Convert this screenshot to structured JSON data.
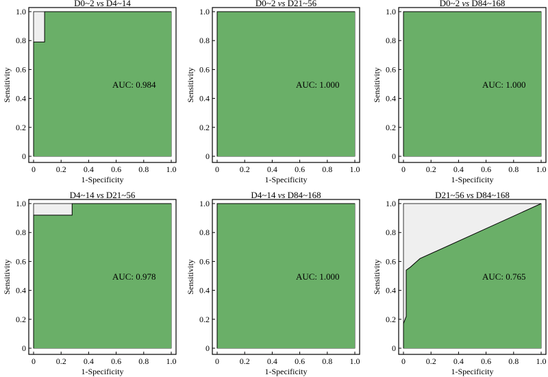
{
  "figure": {
    "xlabel": "1-Specificity",
    "ylabel": "Sensitivity"
  },
  "colors": {
    "auc_fill": "#6aaf68",
    "upper_fill": "#efefef",
    "frame": "#000000"
  },
  "chart_data": [
    {
      "type": "area",
      "title_left": "D0~2",
      "title_vs": "vs",
      "title_right": "D4~14",
      "xlabel": "1-Specificity",
      "ylabel": "Sensitivity",
      "auc_label": "AUC: 0.984",
      "auc": 0.984,
      "xlim": [
        0,
        1
      ],
      "ylim": [
        0,
        1
      ],
      "xticks": [
        "0",
        "0.2",
        "0.4",
        "0.6",
        "0.8",
        "1.0"
      ],
      "yticks": [
        "0",
        "0.2",
        "0.4",
        "0.6",
        "0.8",
        "1.0"
      ],
      "roc": [
        [
          0,
          0
        ],
        [
          0,
          0.79
        ],
        [
          0.08,
          0.79
        ],
        [
          0.08,
          1.0
        ],
        [
          1,
          1.0
        ]
      ]
    },
    {
      "type": "area",
      "title_left": "D0~2",
      "title_vs": "vs",
      "title_right": "D21~56",
      "xlabel": "1-Specificity",
      "ylabel": "Sensitivity",
      "auc_label": "AUC: 1.000",
      "auc": 1.0,
      "xlim": [
        0,
        1
      ],
      "ylim": [
        0,
        1
      ],
      "xticks": [
        "0",
        "0.2",
        "0.4",
        "0.6",
        "0.8",
        "1.0"
      ],
      "yticks": [
        "0",
        "0.2",
        "0.4",
        "0.6",
        "0.8",
        "1.0"
      ],
      "roc": [
        [
          0,
          0
        ],
        [
          0,
          1.0
        ],
        [
          1,
          1.0
        ]
      ]
    },
    {
      "type": "area",
      "title_left": "D0~2",
      "title_vs": "vs",
      "title_right": "D84~168",
      "xlabel": "1-Specificity",
      "ylabel": "Sensitivity",
      "auc_label": "AUC: 1.000",
      "auc": 1.0,
      "xlim": [
        0,
        1
      ],
      "ylim": [
        0,
        1
      ],
      "xticks": [
        "0",
        "0.2",
        "0.4",
        "0.6",
        "0.8",
        "1.0"
      ],
      "yticks": [
        "0",
        "0.2",
        "0.4",
        "0.6",
        "0.8",
        "1.0"
      ],
      "roc": [
        [
          0,
          0
        ],
        [
          0,
          1.0
        ],
        [
          1,
          1.0
        ]
      ]
    },
    {
      "type": "area",
      "title_left": "D4~14",
      "title_vs": "vs",
      "title_right": "D21~56",
      "xlabel": "1-Specificity",
      "ylabel": "Sensitivity",
      "auc_label": "AUC: 0.978",
      "auc": 0.978,
      "xlim": [
        0,
        1
      ],
      "ylim": [
        0,
        1
      ],
      "xticks": [
        "0",
        "0.2",
        "0.4",
        "0.6",
        "0.8",
        "1.0"
      ],
      "yticks": [
        "0",
        "0.2",
        "0.4",
        "0.6",
        "0.8",
        "1.0"
      ],
      "roc": [
        [
          0,
          0
        ],
        [
          0,
          0.92
        ],
        [
          0.28,
          0.92
        ],
        [
          0.28,
          1.0
        ],
        [
          1,
          1.0
        ]
      ]
    },
    {
      "type": "area",
      "title_left": "D4~14",
      "title_vs": "vs",
      "title_right": "D84~168",
      "xlabel": "1-Specificity",
      "ylabel": "Sensitivity",
      "auc_label": "AUC: 1.000",
      "auc": 1.0,
      "xlim": [
        0,
        1
      ],
      "ylim": [
        0,
        1
      ],
      "xticks": [
        "0",
        "0.2",
        "0.4",
        "0.6",
        "0.8",
        "1.0"
      ],
      "yticks": [
        "0",
        "0.2",
        "0.4",
        "0.6",
        "0.8",
        "1.0"
      ],
      "roc": [
        [
          0,
          0
        ],
        [
          0,
          1.0
        ],
        [
          1,
          1.0
        ]
      ]
    },
    {
      "type": "area",
      "title_left": "D21~56",
      "title_vs": "vs",
      "title_right": "D84~168",
      "xlabel": "1-Specificity",
      "ylabel": "Sensitivity",
      "auc_label": "AUC: 0.765",
      "auc": 0.765,
      "xlim": [
        0,
        1
      ],
      "ylim": [
        0,
        1
      ],
      "xticks": [
        "0",
        "0.2",
        "0.4",
        "0.6",
        "0.8",
        "1.0"
      ],
      "yticks": [
        "0",
        "0.2",
        "0.4",
        "0.6",
        "0.8",
        "1.0"
      ],
      "roc": [
        [
          0,
          0
        ],
        [
          0,
          0.17
        ],
        [
          0.02,
          0.22
        ],
        [
          0.02,
          0.54
        ],
        [
          0.05,
          0.56
        ],
        [
          0.12,
          0.62
        ],
        [
          1,
          1.0
        ]
      ]
    }
  ]
}
